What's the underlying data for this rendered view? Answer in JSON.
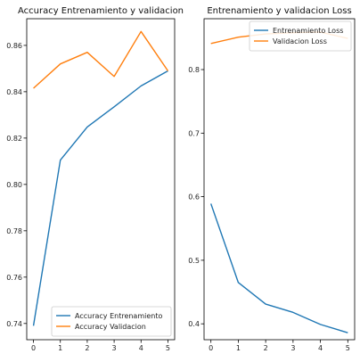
{
  "chart_data": [
    {
      "type": "line",
      "title": "Accuracy Entrenamiento y validacion",
      "x": [
        0,
        1,
        2,
        3,
        4,
        5
      ],
      "xlim": [
        -0.25,
        5.25
      ],
      "ylim": [
        0.733,
        0.8715
      ],
      "xticks": [
        "0",
        "1",
        "2",
        "3",
        "4",
        "5"
      ],
      "yticks": [
        "0.74",
        "0.76",
        "0.78",
        "0.80",
        "0.82",
        "0.84",
        "0.86"
      ],
      "ytick_values": [
        0.74,
        0.76,
        0.78,
        0.8,
        0.82,
        0.84,
        0.86
      ],
      "legend_position": "lower-right",
      "grid": false,
      "series": [
        {
          "name": "Accuracy Entrenamiento",
          "color": "#1f77b4",
          "values": [
            0.739,
            0.8105,
            0.8248,
            0.8335,
            0.8425,
            0.849
          ]
        },
        {
          "name": "Accuracy Validacion",
          "color": "#ff7f0e",
          "values": [
            0.8415,
            0.852,
            0.857,
            0.8466,
            0.866,
            0.849
          ]
        }
      ]
    },
    {
      "type": "line",
      "title": "Entrenamiento y validacion Loss",
      "x": [
        0,
        1,
        2,
        3,
        4,
        5
      ],
      "xlim": [
        -0.25,
        5.25
      ],
      "ylim": [
        0.375,
        0.88
      ],
      "xticks": [
        "0",
        "1",
        "2",
        "3",
        "4",
        "5"
      ],
      "yticks": [
        "0.4",
        "0.5",
        "0.6",
        "0.7",
        "0.8"
      ],
      "ytick_values": [
        0.4,
        0.5,
        0.6,
        0.7,
        0.8
      ],
      "legend_position": "upper-right",
      "grid": false,
      "series": [
        {
          "name": "Entrenamiento Loss",
          "color": "#1f77b4",
          "values": [
            0.589,
            0.465,
            0.431,
            0.418,
            0.399,
            0.386
          ]
        },
        {
          "name": "Validacion Loss",
          "color": "#ff7f0e",
          "values": [
            0.841,
            0.851,
            0.856,
            0.858,
            0.859,
            0.849
          ]
        }
      ]
    }
  ]
}
